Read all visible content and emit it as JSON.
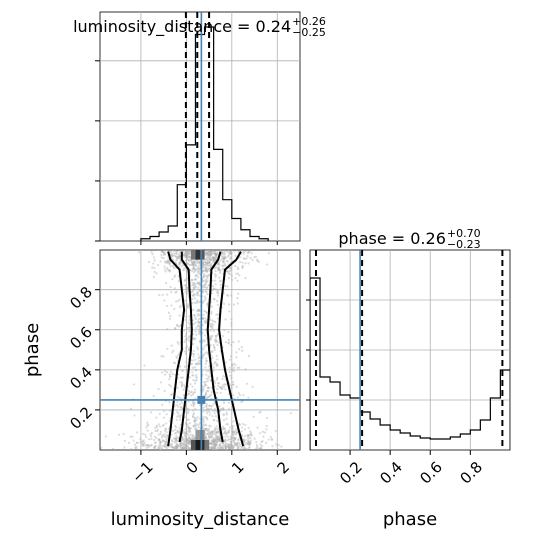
{
  "chart_data": [
    {
      "type": "histogram",
      "panel": "luminosity_distance-marginal",
      "title": {
        "base": "luminosity_distance = 0.24",
        "sup": "+0.26",
        "sub": "−0.25"
      },
      "xlim": [
        -1.9,
        2.5
      ],
      "ylim": [
        0,
        0.305
      ],
      "grid": true,
      "bins": [
        -1.0,
        -0.8,
        -0.6,
        -0.4,
        -0.2,
        0.0,
        0.2,
        0.4,
        0.6,
        0.8,
        1.0,
        1.2,
        1.4,
        1.6,
        1.8
      ],
      "counts": [
        0.003,
        0.006,
        0.012,
        0.02,
        0.075,
        0.128,
        0.275,
        0.285,
        0.122,
        0.055,
        0.03,
        0.015,
        0.006,
        0.003
      ],
      "quantile_lines": [
        -0.01,
        0.24,
        0.5
      ],
      "truth": 0.33,
      "xticks": [
        -1,
        0,
        1,
        2
      ]
    },
    {
      "type": "histogram",
      "panel": "phase-marginal",
      "title": {
        "base": "phase = 0.26",
        "sup": "+0.70",
        "sub": "−0.23"
      },
      "xlabel": "phase",
      "xlim": [
        0.0,
        0.998
      ],
      "ylim": [
        0,
        0.2
      ],
      "grid": true,
      "bins": [
        0.0,
        0.05,
        0.1,
        0.15,
        0.2,
        0.25,
        0.3,
        0.35,
        0.4,
        0.45,
        0.5,
        0.55,
        0.6,
        0.65,
        0.7,
        0.75,
        0.8,
        0.85,
        0.9,
        0.95,
        1.0
      ],
      "counts": [
        0.172,
        0.073,
        0.068,
        0.055,
        0.052,
        0.038,
        0.031,
        0.025,
        0.02,
        0.017,
        0.014,
        0.012,
        0.011,
        0.011,
        0.013,
        0.016,
        0.02,
        0.03,
        0.052,
        0.08
      ],
      "quantile_lines": [
        0.03,
        0.26,
        0.96
      ],
      "truth": 0.25,
      "xticks": [
        0.2,
        0.4,
        0.6,
        0.8
      ],
      "xtick_labels": [
        "0.2",
        "0.4",
        "0.6",
        "0.8"
      ]
    },
    {
      "type": "scatter",
      "panel": "luminosity_distance-vs-phase",
      "xlabel": "luminosity_distance",
      "ylabel": "phase",
      "xlim": [
        -1.9,
        2.5
      ],
      "ylim": [
        0.0,
        0.998
      ],
      "grid": true,
      "xticks": [
        -1,
        0,
        1,
        2
      ],
      "xtick_labels": [
        "−1",
        "0",
        "1",
        "2"
      ],
      "yticks": [
        0.2,
        0.4,
        0.6,
        0.8
      ],
      "ytick_labels": [
        "0.2",
        "0.4",
        "0.6",
        "0.8"
      ],
      "truth": {
        "x": 0.33,
        "y": 0.25
      },
      "contours": [
        {
          "name": "inner",
          "left": [
            [
              -0.1,
              0.99
            ],
            [
              -0.1,
              0.95
            ],
            [
              0.05,
              0.9
            ],
            [
              0.07,
              0.8
            ],
            [
              0.1,
              0.7
            ],
            [
              0.12,
              0.6
            ],
            [
              0.1,
              0.5
            ],
            [
              0.05,
              0.4
            ],
            [
              0.0,
              0.3
            ],
            [
              -0.05,
              0.2
            ],
            [
              -0.1,
              0.1
            ],
            [
              -0.15,
              0.04
            ]
          ],
          "right": [
            [
              0.75,
              0.99
            ],
            [
              0.7,
              0.95
            ],
            [
              0.55,
              0.9
            ],
            [
              0.53,
              0.8
            ],
            [
              0.5,
              0.7
            ],
            [
              0.47,
              0.6
            ],
            [
              0.5,
              0.5
            ],
            [
              0.55,
              0.4
            ],
            [
              0.6,
              0.3
            ],
            [
              0.7,
              0.2
            ],
            [
              0.75,
              0.1
            ],
            [
              0.8,
              0.04
            ]
          ]
        },
        {
          "name": "outer",
          "left": [
            [
              -0.4,
              0.99
            ],
            [
              -0.35,
              0.95
            ],
            [
              -0.15,
              0.9
            ],
            [
              -0.1,
              0.8
            ],
            [
              -0.05,
              0.7
            ],
            [
              -0.1,
              0.6
            ],
            [
              -0.1,
              0.5
            ],
            [
              -0.2,
              0.4
            ],
            [
              -0.25,
              0.3
            ],
            [
              -0.3,
              0.2
            ],
            [
              -0.35,
              0.1
            ],
            [
              -0.4,
              0.02
            ]
          ],
          "right": [
            [
              1.2,
              0.99
            ],
            [
              1.1,
              0.95
            ],
            [
              0.85,
              0.9
            ],
            [
              0.8,
              0.8
            ],
            [
              0.75,
              0.7
            ],
            [
              0.72,
              0.6
            ],
            [
              0.78,
              0.5
            ],
            [
              0.85,
              0.4
            ],
            [
              0.95,
              0.3
            ],
            [
              1.05,
              0.2
            ],
            [
              1.15,
              0.1
            ],
            [
              1.25,
              0.02
            ]
          ]
        }
      ],
      "dense_bins": [
        {
          "x0": 0.2,
          "x1": 0.3,
          "y0": 0.0,
          "y1": 0.05,
          "color": "#1a1a1a"
        },
        {
          "x0": 0.3,
          "x1": 0.4,
          "y0": 0.0,
          "y1": 0.05,
          "color": "#2a2a2a"
        },
        {
          "x0": 0.1,
          "x1": 0.2,
          "y0": 0.0,
          "y1": 0.05,
          "color": "#555555"
        },
        {
          "x0": 0.4,
          "x1": 0.5,
          "y0": 0.0,
          "y1": 0.05,
          "color": "#777777"
        },
        {
          "x0": 0.2,
          "x1": 0.3,
          "y0": 0.95,
          "y1": 0.998,
          "color": "#333333"
        },
        {
          "x0": 0.3,
          "x1": 0.4,
          "y0": 0.95,
          "y1": 0.998,
          "color": "#555555"
        },
        {
          "x0": 0.1,
          "x1": 0.2,
          "y0": 0.95,
          "y1": 0.998,
          "color": "#777777"
        },
        {
          "x0": 0.3,
          "x1": 0.4,
          "y0": 0.05,
          "y1": 0.1,
          "color": "#888888"
        },
        {
          "x0": 0.2,
          "x1": 0.3,
          "y0": 0.05,
          "y1": 0.1,
          "color": "#999999"
        }
      ],
      "n_samples": 2500
    }
  ],
  "colors": {
    "truth": "#4682b4",
    "hist": "#000000",
    "grid": "#b0b0b0",
    "point": "#b0b0b0",
    "dense": "#000000"
  }
}
